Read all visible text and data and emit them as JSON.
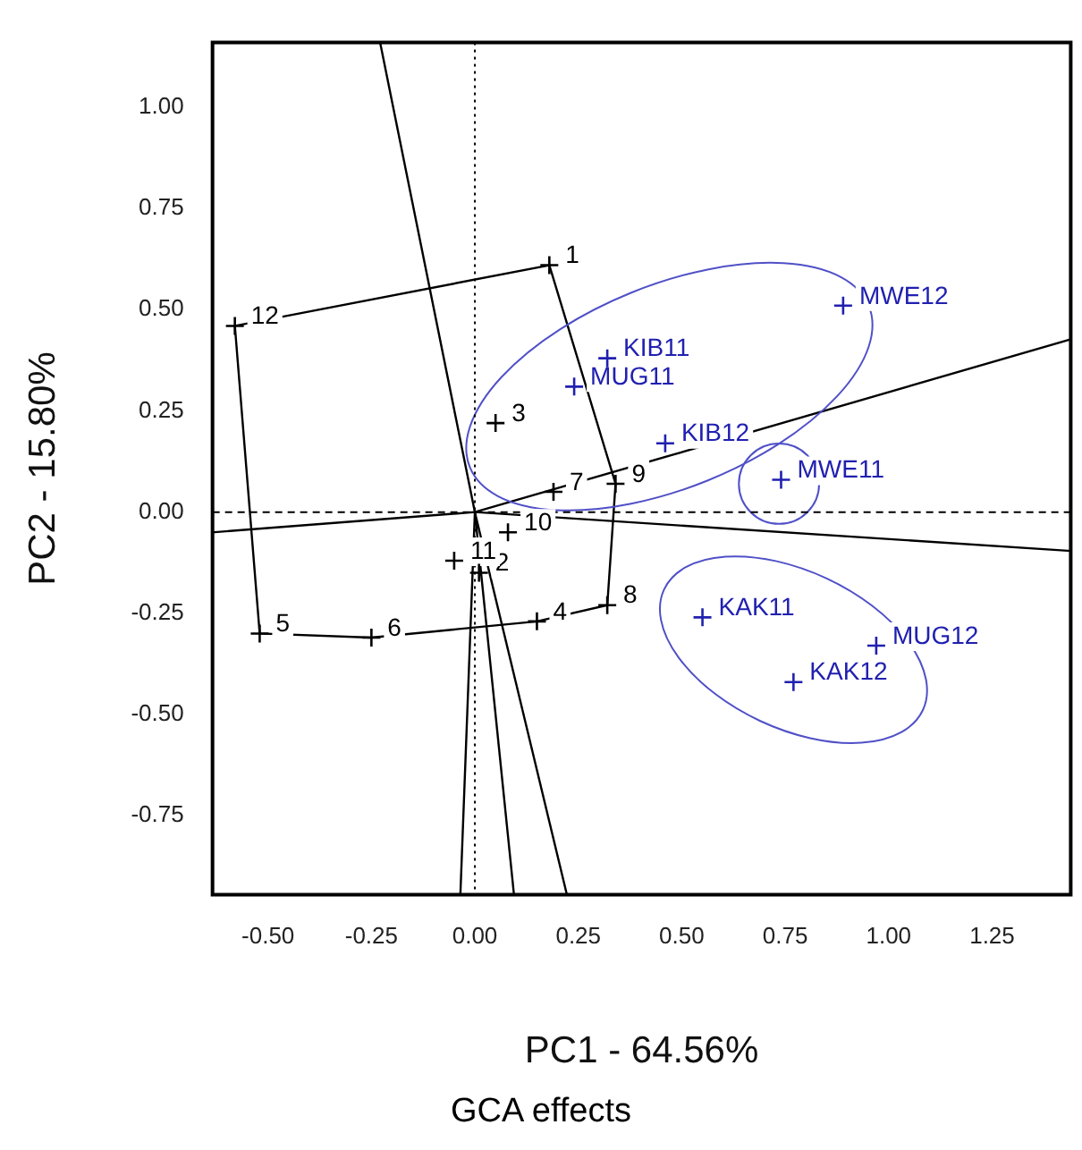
{
  "chart_data": {
    "type": "scatter",
    "xlabel": "PC1 - 64.56%",
    "ylabel": "PC2 - 15.80%",
    "xlim": [
      -0.634,
      1.44
    ],
    "xticks": [
      {
        "value": -0.5,
        "label": "-0.50"
      },
      {
        "value": -0.25,
        "label": "-0.25"
      },
      {
        "value": 0,
        "label": "0.00"
      },
      {
        "value": 0.25,
        "label": "0.25"
      },
      {
        "value": 0.5,
        "label": "0.50"
      },
      {
        "value": 0.75,
        "label": "0.75"
      },
      {
        "value": 1,
        "label": "1.00"
      },
      {
        "value": 1.25,
        "label": "1.25"
      }
    ],
    "ylim": [
      -0.945,
      1.16
    ],
    "yticks": [
      {
        "value": -0.75,
        "label": "-0.75"
      },
      {
        "value": -0.5,
        "label": "-0.50"
      },
      {
        "value": -0.25,
        "label": "-0.25"
      },
      {
        "value": 0,
        "label": "0.00"
      },
      {
        "value": 0.25,
        "label": "0.25"
      },
      {
        "value": 0.5,
        "label": "0.50"
      },
      {
        "value": 0.75,
        "label": "0.75"
      },
      {
        "value": 1,
        "label": "1.00"
      }
    ],
    "grid": false,
    "legend": false,
    "series": [
      {
        "color": "#000000",
        "marker": "cross",
        "x": [
          0.18,
          0.01,
          0.05,
          0.15,
          -0.52,
          -0.25,
          0.19,
          0.32,
          0.34,
          0.08,
          -0.05,
          -0.58
        ],
        "values": [
          0.61,
          -0.15,
          0.22,
          -0.27,
          -0.3,
          -0.31,
          0.05,
          -0.23,
          0.07,
          -0.05,
          -0.12,
          0.46
        ]
      },
      {
        "color": "#2020b0",
        "marker": "cross",
        "x": [
          0.89,
          0.32,
          0.24,
          0.46,
          0.74,
          0.55,
          0.97,
          0.77
        ],
        "values": [
          0.51,
          0.38,
          0.31,
          0.17,
          0.08,
          -0.26,
          -0.33,
          -0.42
        ]
      }
    ],
    "ref_lines": [
      {
        "axis": "x",
        "value": 0,
        "line_style": "dotted"
      },
      {
        "axis": "y",
        "value": 0,
        "line_style": "dashed"
      }
    ],
    "annotations": [
      {
        "text": "1",
        "x": 0.18,
        "y": 0.61
      },
      {
        "text": "2",
        "x": 0.01,
        "y": -0.15
      },
      {
        "text": "3",
        "x": 0.05,
        "y": 0.22
      },
      {
        "text": "4",
        "x": 0.15,
        "y": -0.27
      },
      {
        "text": "5",
        "x": -0.52,
        "y": -0.3
      },
      {
        "text": "6",
        "x": -0.25,
        "y": -0.31
      },
      {
        "text": "7",
        "x": 0.19,
        "y": 0.05
      },
      {
        "text": "8",
        "x": 0.32,
        "y": -0.23
      },
      {
        "text": "9",
        "x": 0.34,
        "y": 0.07
      },
      {
        "text": "10",
        "x": 0.08,
        "y": -0.05
      },
      {
        "text": "11",
        "x": -0.05,
        "y": -0.12
      },
      {
        "text": "12",
        "x": -0.58,
        "y": 0.46
      },
      {
        "text": "MWE12",
        "x": 0.89,
        "y": 0.51
      },
      {
        "text": "KIB11",
        "x": 0.32,
        "y": 0.38
      },
      {
        "text": "MUG11",
        "x": 0.24,
        "y": 0.31
      },
      {
        "text": "KIB12",
        "x": 0.46,
        "y": 0.17
      },
      {
        "text": "MWE11",
        "x": 0.74,
        "y": 0.08
      },
      {
        "text": "KAK11",
        "x": 0.55,
        "y": -0.26
      },
      {
        "text": "MUG12",
        "x": 0.97,
        "y": -0.33
      },
      {
        "text": "KAK12",
        "x": 0.77,
        "y": -0.42
      },
      "GCA effects"
    ]
  }
}
